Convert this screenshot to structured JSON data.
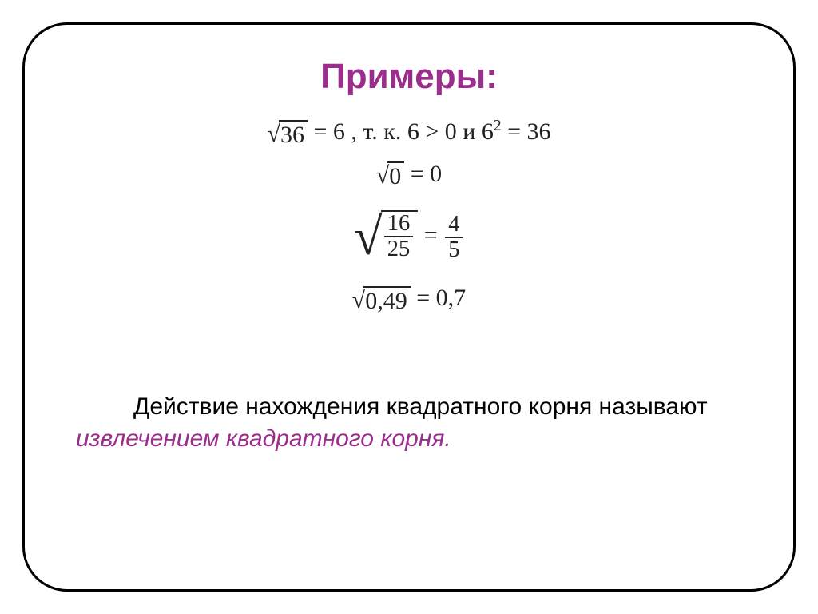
{
  "title": {
    "text": "Примеры:",
    "color": "#9b2d8c"
  },
  "math": {
    "line1": {
      "sqrt_arg": "36",
      "sqrt_result": "6",
      "note_prefix": ", т. к. ",
      "cond": "6 > 0",
      "conj": " и ",
      "pow_base": "6",
      "pow_exp": "2",
      "pow_eq": " = 36"
    },
    "line2": {
      "sqrt_arg": "0",
      "result": " = 0"
    },
    "line3": {
      "frac_num": "16",
      "frac_den": "25",
      "res_num": "4",
      "res_den": "5",
      "eq": " = "
    },
    "line4": {
      "sqrt_arg": "0,49",
      "result": " = 0,7"
    }
  },
  "body": {
    "plain1": "Действие нахождения квадратного корня называют ",
    "em": "извлечением квадратного корня.",
    "em_color": "#9b2d8c"
  },
  "colors": {
    "frame_border": "#000000",
    "math_text": "#222222"
  }
}
